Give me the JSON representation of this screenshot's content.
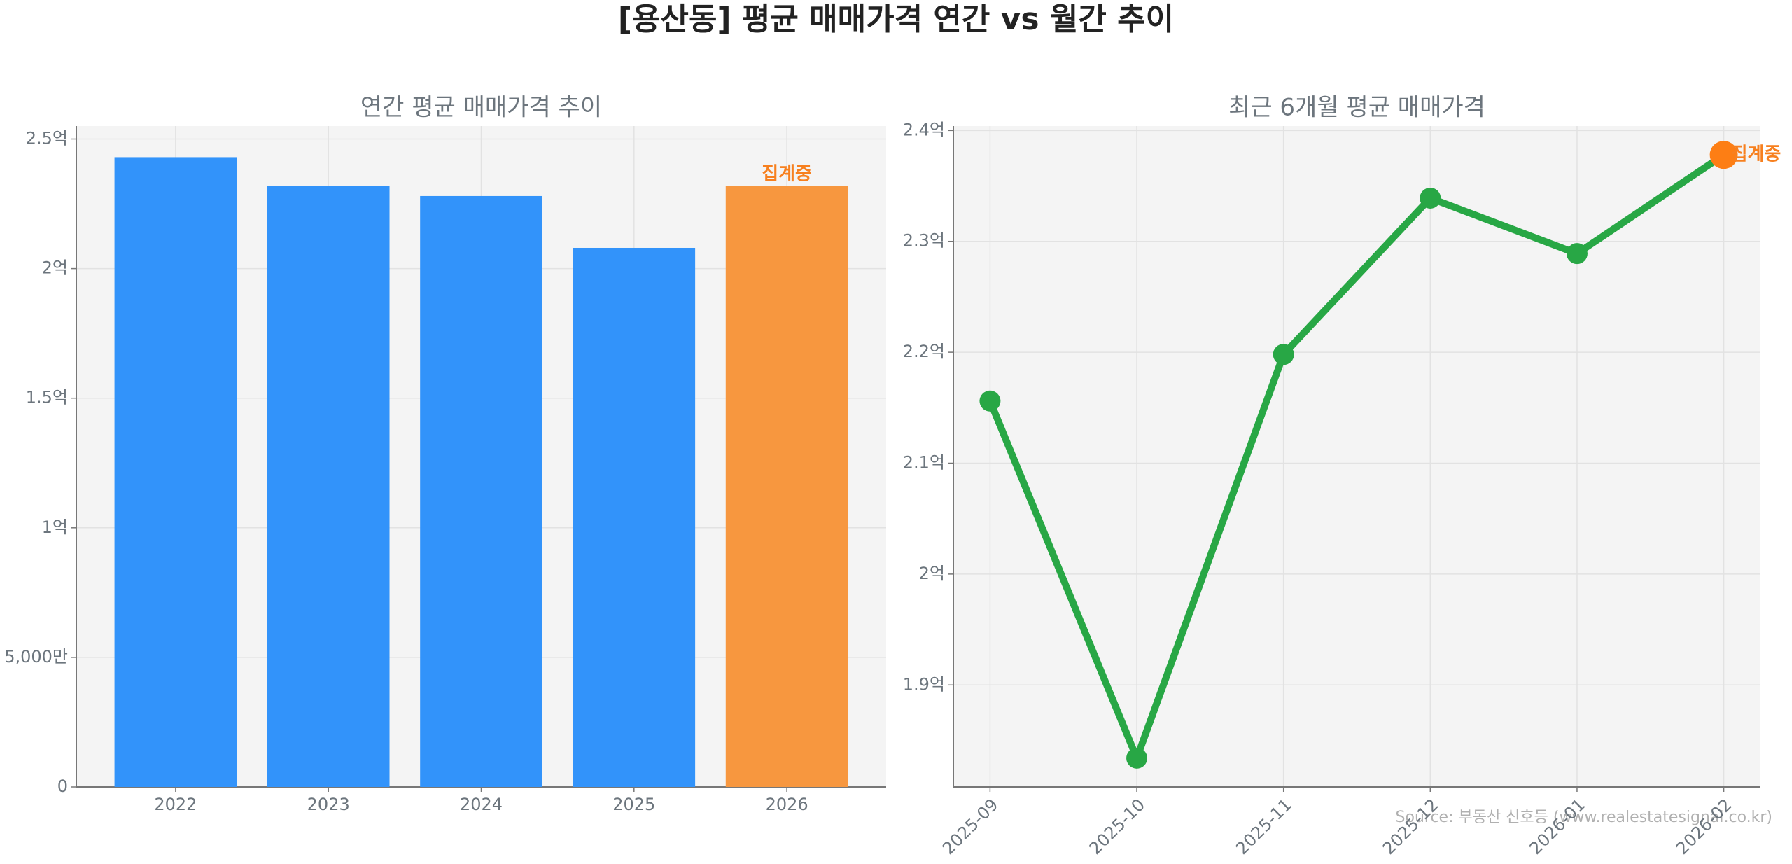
{
  "title": "[용산동] 평균 매매가격 연간 vs 월간 추이",
  "source": "Source: 부동산 신호등 (www.realestatesignal.co.kr)",
  "chart_data": [
    {
      "type": "bar",
      "title": "연간 평균 매매가격 추이",
      "categories": [
        "2022",
        "2023",
        "2024",
        "2025",
        "2026"
      ],
      "values": [
        243000000,
        232000000,
        228000000,
        208000000,
        232000000
      ],
      "colors": [
        "#3293fa",
        "#3293fa",
        "#3293fa",
        "#3293fa",
        "#f7973f"
      ],
      "annotation": "집계중",
      "annotation_color": "#f7801f",
      "ylim": [
        0,
        255000000
      ],
      "yticks": [
        {
          "value": 0,
          "label": "0"
        },
        {
          "value": 50000000,
          "label": "5,000만"
        },
        {
          "value": 100000000,
          "label": "1억"
        },
        {
          "value": 150000000,
          "label": "1.5억"
        },
        {
          "value": 200000000,
          "label": "2억"
        },
        {
          "value": 250000000,
          "label": "2.5억"
        }
      ],
      "grid": true
    },
    {
      "type": "line",
      "title": "최근 6개월 평균 매매가격",
      "categories": [
        "2025-09",
        "2025-10",
        "2025-11",
        "2025-12",
        "2026-01",
        "2026-02"
      ],
      "values": [
        215600000,
        183400000,
        219800000,
        233900000,
        228900000,
        237800000
      ],
      "color": "#28a745",
      "highlight_color": "#fd7e14",
      "annotation": "집계중",
      "annotation_color": "#f7801f",
      "ylim": [
        180800000,
        240400000
      ],
      "yticks": [
        {
          "value": 190000000,
          "label": "1.9억"
        },
        {
          "value": 200000000,
          "label": "2억"
        },
        {
          "value": 210000000,
          "label": "2.1억"
        },
        {
          "value": 220000000,
          "label": "2.2억"
        },
        {
          "value": 230000000,
          "label": "2.3억"
        },
        {
          "value": 240000000,
          "label": "2.4억"
        }
      ],
      "grid": true
    }
  ]
}
